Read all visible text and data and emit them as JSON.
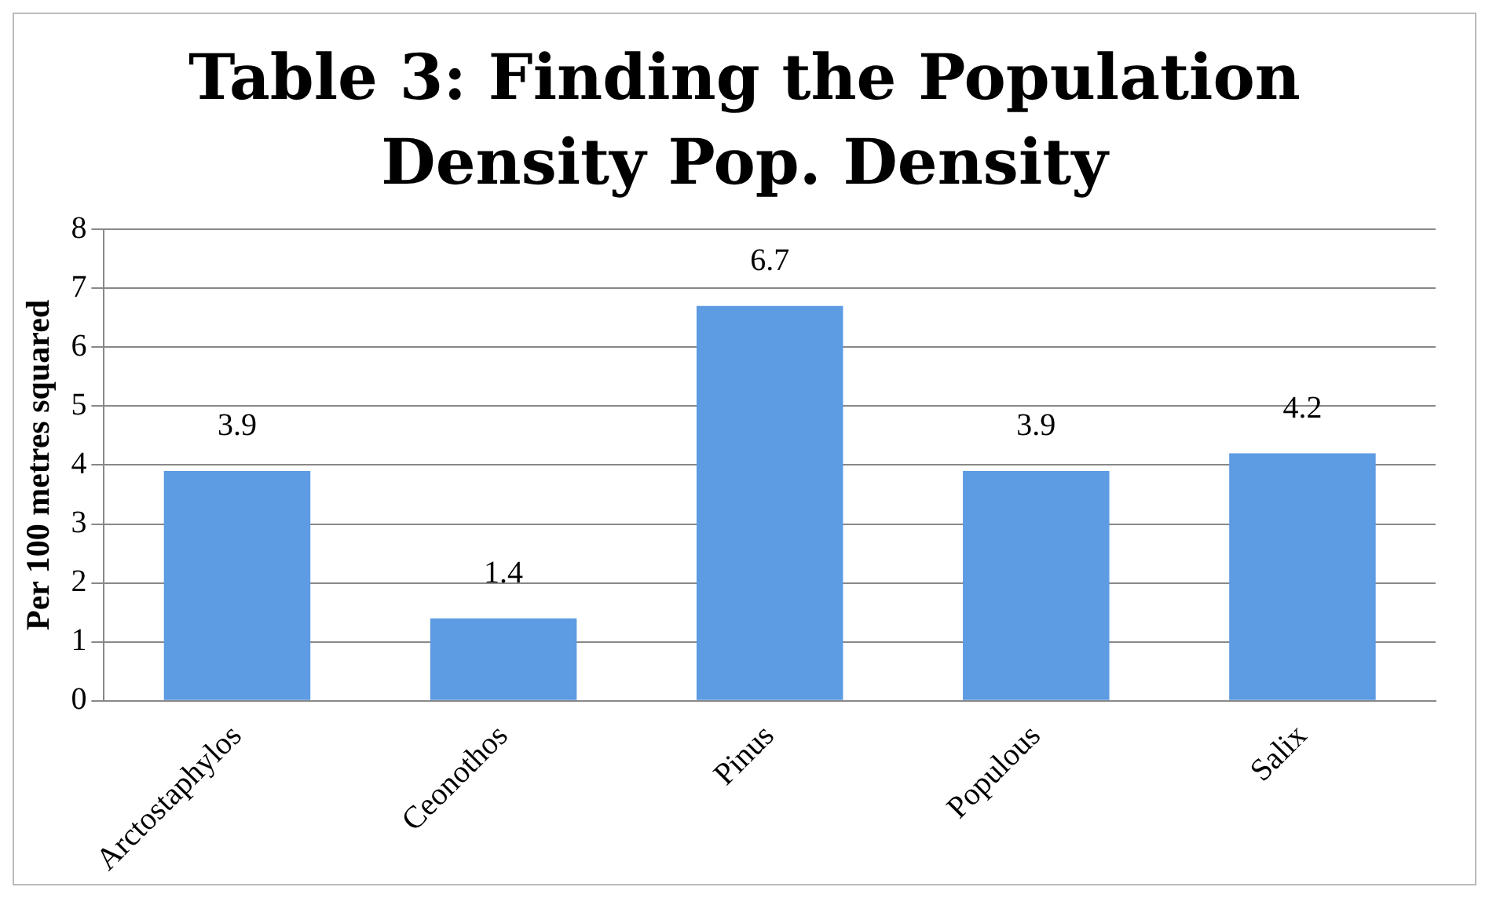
{
  "chart_data": {
    "type": "bar",
    "title": "Table 3: Finding the Population Density Pop. Density",
    "ylabel": "Per 100 metres squared",
    "categories": [
      "Arctostaphylos",
      "Ceonothos",
      "Pinus",
      "Populous",
      "Salix"
    ],
    "values": [
      3.9,
      1.4,
      6.7,
      3.9,
      4.2
    ],
    "color": "#5d9be3",
    "ylim": [
      0,
      8
    ],
    "yticks": [
      0,
      1,
      2,
      3,
      4,
      5,
      6,
      7,
      8
    ],
    "grid": "y",
    "data_labels": true
  }
}
